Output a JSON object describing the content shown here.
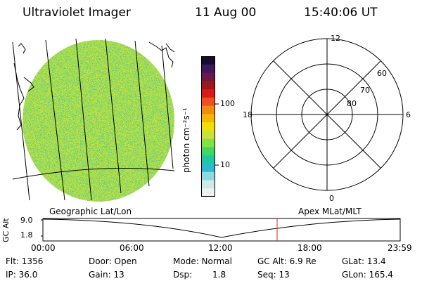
{
  "header": {
    "instrument": "Ultraviolet Imager",
    "date": "11 Aug 00",
    "time": "15:40:06 UT"
  },
  "colorbar": {
    "unit_label": "photon cm⁻²s⁻¹",
    "ticks": [
      "100",
      "10"
    ],
    "colors_top_to_bottom": [
      "#1a0a2e",
      "#3a1a5a",
      "#6a1a4a",
      "#9a1a1a",
      "#d81a1a",
      "#f05020",
      "#f08a10",
      "#f0b800",
      "#f0e000",
      "#c8e040",
      "#88e040",
      "#40d860",
      "#20c8a0",
      "#30b8d0",
      "#90d8e0",
      "#d0e8e8",
      "#f0f0f0"
    ]
  },
  "polar_plot": {
    "mlt_labels": {
      "top": "12",
      "left": "18",
      "right": "6",
      "bottom": "0"
    },
    "lat_labels": [
      "60",
      "70",
      "80"
    ]
  },
  "timeline": {
    "y_axis_label": "GC Alt",
    "y_ticks": [
      "9.0",
      "1.8"
    ],
    "left_caption": "Geographic Lat/Lon",
    "right_caption": "Apex MLat/MLT",
    "x_ticks": [
      "00:00",
      "06:00",
      "12:00",
      "18:00",
      "23:59"
    ],
    "current_marker_color": "#e02020"
  },
  "info": {
    "flt": "Flt: 1356",
    "ip": "IP: 36.0",
    "door": "Door: Open",
    "gain": "Gain: 13",
    "mode": "Mode: Normal",
    "dsp_label": "Dsp:",
    "dsp_value": "1.8",
    "gc_alt": "GC Alt: 6.9 Re",
    "seq": "Seq: 13",
    "glat": "GLat: 13.4",
    "glon": "GLon: 165.4"
  }
}
